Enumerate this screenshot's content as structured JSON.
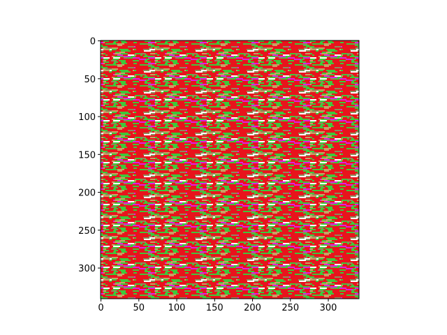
{
  "chart_data": {
    "type": "image",
    "palette": [
      "#e8141c",
      "#3ec83a",
      "#e020e0",
      "#8c8c5a",
      "#c8a064",
      "#ffffff"
    ],
    "xlim": [
      -0.5,
      340.5
    ],
    "ylim": [
      340.5,
      -0.5
    ],
    "xticks": [
      0,
      50,
      100,
      150,
      200,
      250,
      300
    ],
    "yticks": [
      0,
      50,
      100,
      150,
      200,
      250,
      300
    ]
  }
}
